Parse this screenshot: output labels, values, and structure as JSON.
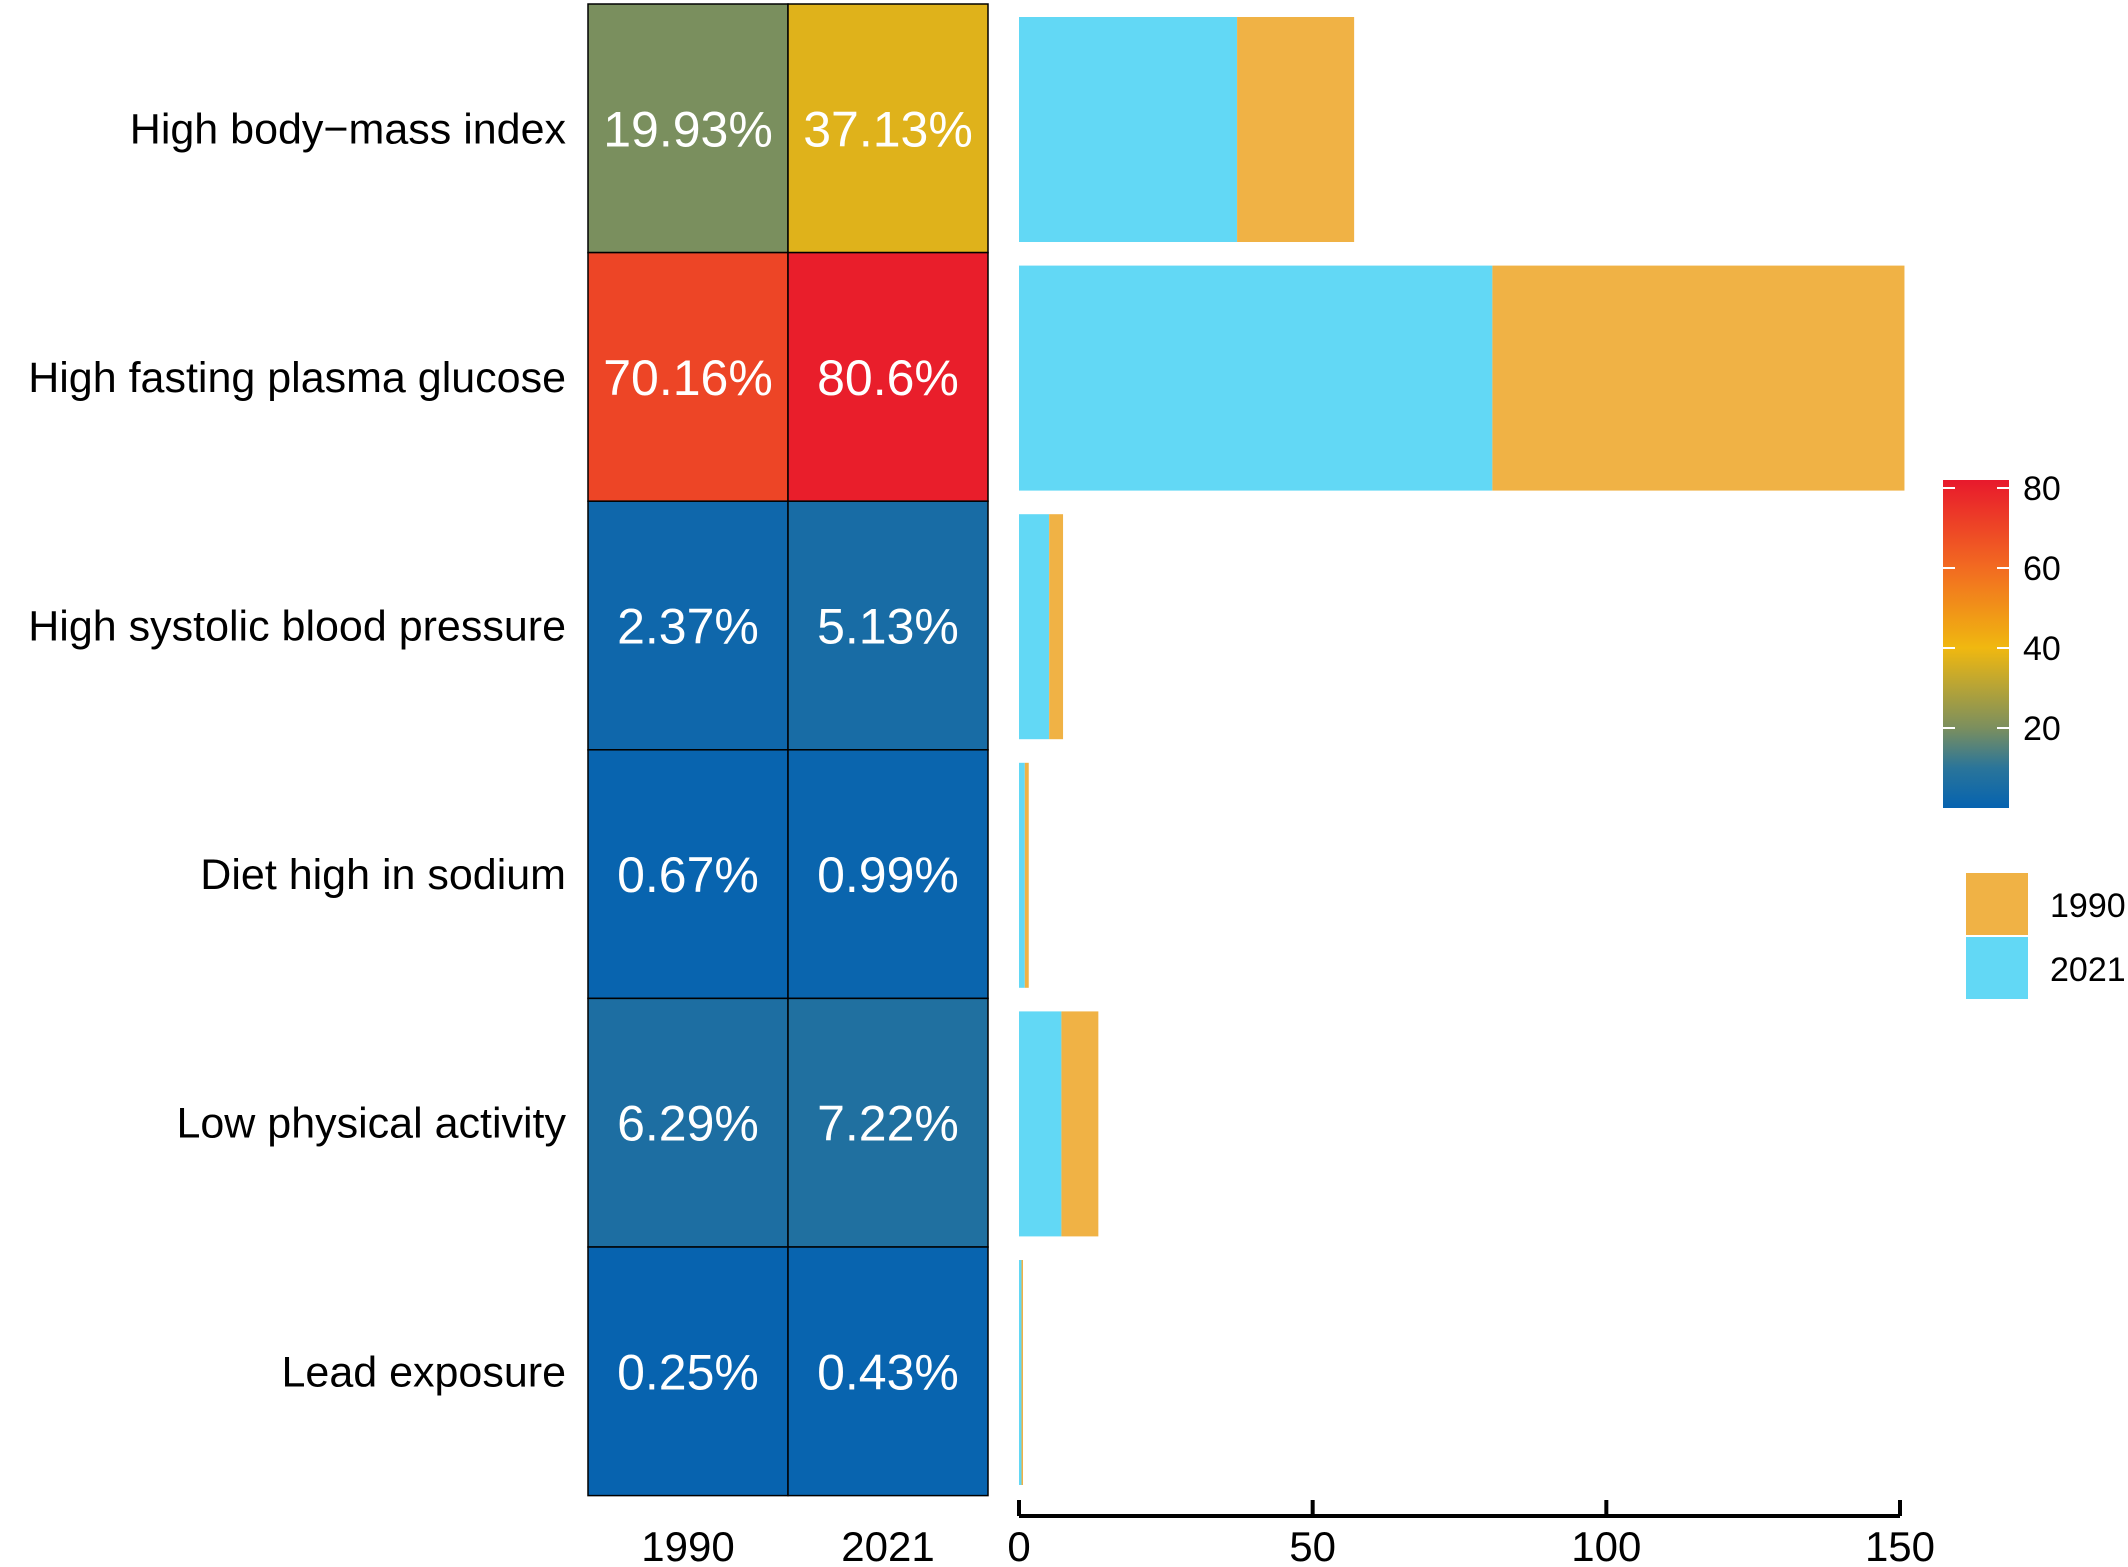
{
  "chart_data": [
    {
      "type": "heatmap",
      "rows": [
        "High body−mass index",
        "High fasting plasma glucose",
        "High systolic blood pressure",
        "Diet high in sodium",
        "Low physical activity",
        "Lead exposure"
      ],
      "columns": [
        "1990",
        "2021"
      ],
      "values": [
        [
          19.93,
          37.13
        ],
        [
          70.16,
          80.6
        ],
        [
          2.37,
          5.13
        ],
        [
          0.67,
          0.99
        ],
        [
          6.29,
          7.22
        ],
        [
          0.25,
          0.43
        ]
      ],
      "cell_labels": [
        [
          "19.93%",
          "37.13%"
        ],
        [
          "70.16%",
          "80.6%"
        ],
        [
          "2.37%",
          "5.13%"
        ],
        [
          "0.67%",
          "0.99%"
        ],
        [
          "6.29%",
          "7.22%"
        ],
        [
          "0.25%",
          "0.43%"
        ]
      ],
      "colorbar": {
        "ticks": [
          20,
          40,
          60,
          80
        ],
        "range": [
          0,
          82
        ],
        "stops": [
          {
            "value": 0,
            "color": "#0663B0"
          },
          {
            "value": 10,
            "color": "#2A759A"
          },
          {
            "value": 20,
            "color": "#7B8F5E"
          },
          {
            "value": 40,
            "color": "#F0B810"
          },
          {
            "value": 60,
            "color": "#F26B21"
          },
          {
            "value": 82,
            "color": "#E8192C"
          }
        ]
      }
    },
    {
      "type": "bar",
      "orientation": "horizontal",
      "stacked": true,
      "categories": [
        "High body−mass index",
        "High fasting plasma glucose",
        "High systolic blood pressure",
        "Diet high in sodium",
        "Low physical activity",
        "Lead exposure"
      ],
      "series": [
        {
          "name": "2021",
          "color": "#62D8F5",
          "values": [
            37.13,
            80.6,
            5.13,
            0.99,
            7.22,
            0.43
          ]
        },
        {
          "name": "1990",
          "color": "#F0B245",
          "values": [
            19.93,
            70.16,
            2.37,
            0.67,
            6.29,
            0.25
          ]
        }
      ],
      "xlim": [
        0,
        150
      ],
      "xticks": [
        0,
        50,
        100,
        150
      ],
      "legend": {
        "placement": "right",
        "order": [
          "1990",
          "2021"
        ]
      }
    }
  ]
}
